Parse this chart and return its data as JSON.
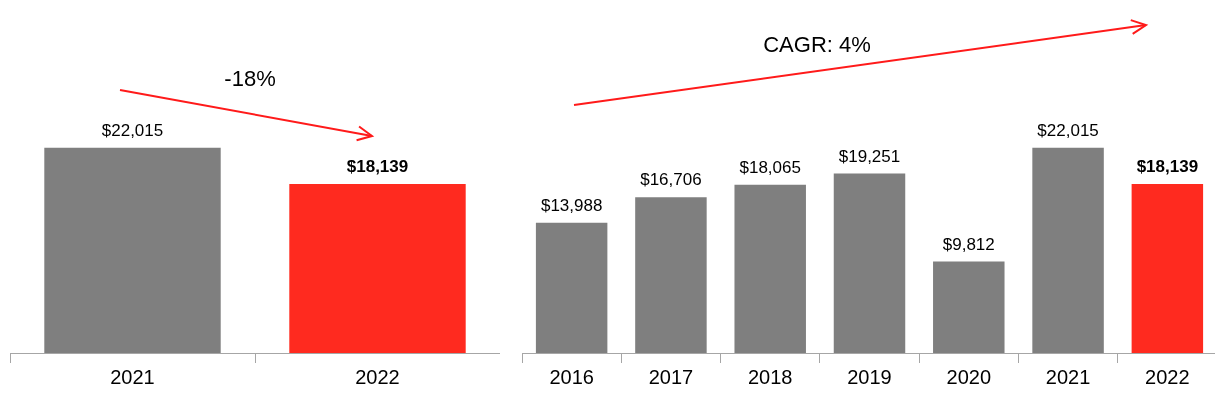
{
  "chart_data": [
    {
      "type": "bar",
      "categories": [
        "2021",
        "2022"
      ],
      "values": [
        22015,
        18139
      ],
      "colors": [
        "#7f7f7f",
        "#ff2a1f"
      ],
      "value_labels": [
        "$22,015",
        "$18,139"
      ],
      "grid": false,
      "legend": false,
      "tick_labels": "x",
      "annotations": [
        "-18%"
      ]
    },
    {
      "type": "bar",
      "categories": [
        "2016",
        "2017",
        "2018",
        "2019",
        "2020",
        "2021",
        "2022"
      ],
      "values": [
        13988,
        16706,
        18065,
        19251,
        9812,
        22015,
        18139
      ],
      "colors": [
        "#7f7f7f",
        "#7f7f7f",
        "#7f7f7f",
        "#7f7f7f",
        "#7f7f7f",
        "#7f7f7f",
        "#ff2a1f"
      ],
      "value_labels": [
        "$13,988",
        "$16,706",
        "$18,065",
        "$19,251",
        "$9,812",
        "$22,015",
        "$18,139"
      ],
      "grid": false,
      "legend": false,
      "tick_labels": "x",
      "annotations": [
        "CAGR: 4%"
      ]
    }
  ]
}
